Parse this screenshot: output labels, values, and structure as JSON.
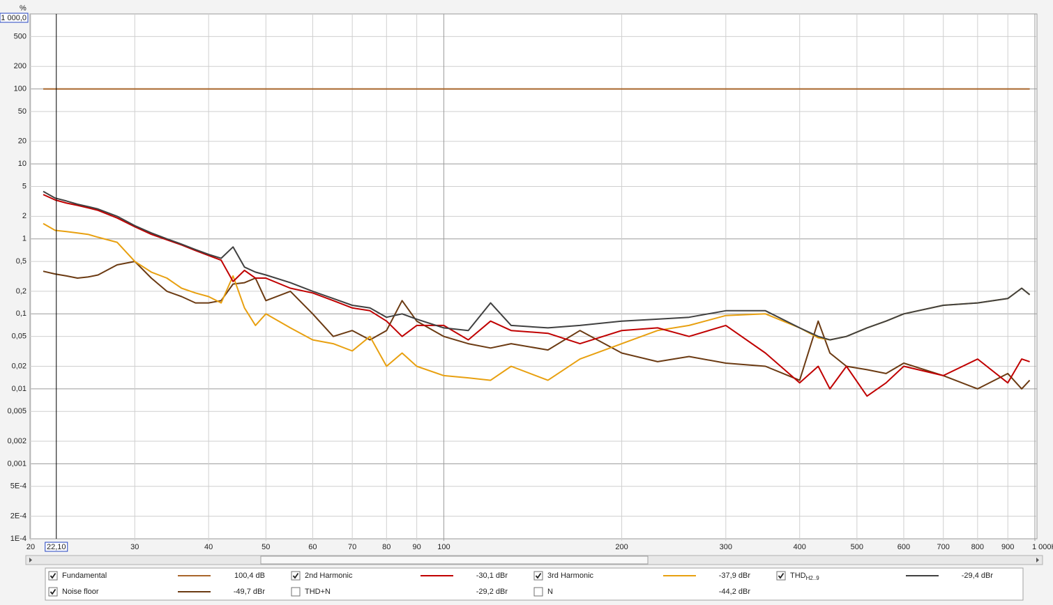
{
  "chart_data": {
    "type": "line",
    "y_label": "%",
    "log_x": true,
    "log_y": true,
    "grid": true,
    "xlim": [
      20,
      1000
    ],
    "ylim": [
      0.0001,
      1000
    ],
    "xticks": [
      20,
      30,
      40,
      50,
      60,
      70,
      80,
      90,
      100,
      200,
      300,
      400,
      500,
      600,
      700,
      800,
      900,
      {
        "value": 1000,
        "label": "1 000Hz"
      }
    ],
    "yticks": [
      {
        "value": 1000,
        "label": "1 000,0"
      },
      500,
      200,
      100,
      50,
      20,
      10,
      5,
      2,
      1,
      {
        "value": 0.5,
        "label": "0,5"
      },
      {
        "value": 0.2,
        "label": "0,2"
      },
      {
        "value": 0.1,
        "label": "0,1"
      },
      {
        "value": 0.05,
        "label": "0,05"
      },
      {
        "value": 0.02,
        "label": "0,02"
      },
      {
        "value": 0.01,
        "label": "0,01"
      },
      {
        "value": 0.005,
        "label": "0,005"
      },
      {
        "value": 0.002,
        "label": "0,002"
      },
      {
        "value": 0.001,
        "label": "0,001"
      },
      {
        "value": 0.0005,
        "label": "5E-4"
      },
      {
        "value": 0.0002,
        "label": "2E-4"
      },
      {
        "value": 0.0001,
        "label": "1E-4"
      }
    ],
    "cursor": {
      "value": 22.1,
      "label": "22,10"
    },
    "x": [
      21,
      22,
      23,
      24,
      25,
      26,
      28,
      30,
      32,
      34,
      36,
      38,
      40,
      42,
      44,
      46,
      48,
      50,
      55,
      60,
      65,
      70,
      75,
      80,
      85,
      90,
      100,
      110,
      120,
      130,
      150,
      170,
      200,
      230,
      260,
      300,
      350,
      400,
      430,
      450,
      480,
      520,
      560,
      600,
      700,
      800,
      900,
      950,
      980
    ],
    "series": [
      {
        "name": "Fundamental",
        "color": "#a8652a",
        "reading": "100,4 dB",
        "checked": true,
        "x": [
          21,
          980
        ],
        "values": [
          100,
          100
        ]
      },
      {
        "name": "2nd Harmonic",
        "color": "#c00000",
        "reading": "-30,1 dBr",
        "checked": true,
        "values": [
          3.9,
          3.3,
          3.0,
          2.8,
          2.6,
          2.4,
          1.9,
          1.45,
          1.15,
          0.97,
          0.83,
          0.7,
          0.6,
          0.52,
          0.27,
          0.38,
          0.3,
          0.3,
          0.22,
          0.19,
          0.15,
          0.12,
          0.11,
          0.08,
          0.05,
          0.07,
          0.07,
          0.045,
          0.08,
          0.06,
          0.055,
          0.04,
          0.06,
          0.065,
          0.05,
          0.07,
          0.03,
          0.012,
          0.02,
          0.01,
          0.02,
          0.008,
          0.012,
          0.02,
          0.015,
          0.025,
          0.012,
          0.025,
          0.023
        ]
      },
      {
        "name": "3rd Harmonic",
        "color": "#e8a010",
        "reading": "-37,9 dBr",
        "checked": true,
        "values": [
          1.6,
          1.3,
          1.25,
          1.2,
          1.15,
          1.05,
          0.9,
          0.5,
          0.36,
          0.3,
          0.22,
          0.19,
          0.17,
          0.14,
          0.32,
          0.12,
          0.07,
          0.1,
          0.065,
          0.045,
          0.04,
          0.032,
          0.05,
          0.02,
          0.03,
          0.02,
          0.015,
          0.014,
          0.013,
          0.02,
          0.013,
          0.025,
          0.04,
          0.06,
          0.07,
          0.095,
          0.1,
          0.065,
          0.048,
          0.045,
          0.05,
          0.065,
          0.08,
          0.1,
          0.13,
          0.14,
          0.16,
          0.22,
          0.18
        ]
      },
      {
        "name": "THD",
        "sub": "H2..9",
        "color": "#404040",
        "reading": "-29,4 dBr",
        "checked": true,
        "values": [
          4.3,
          3.5,
          3.2,
          2.9,
          2.7,
          2.5,
          2.0,
          1.5,
          1.2,
          1.0,
          0.85,
          0.72,
          0.62,
          0.55,
          0.78,
          0.42,
          0.36,
          0.33,
          0.26,
          0.2,
          0.16,
          0.13,
          0.12,
          0.09,
          0.1,
          0.085,
          0.065,
          0.06,
          0.14,
          0.07,
          0.065,
          0.07,
          0.08,
          0.085,
          0.09,
          0.11,
          0.11,
          0.065,
          0.05,
          0.045,
          0.05,
          0.065,
          0.08,
          0.1,
          0.13,
          0.14,
          0.16,
          0.22,
          0.18
        ]
      },
      {
        "name": "Noise floor",
        "color": "#6b3a12",
        "reading": "-49,7 dBr",
        "checked": true,
        "values": [
          0.37,
          0.34,
          0.32,
          0.3,
          0.31,
          0.33,
          0.45,
          0.5,
          0.3,
          0.2,
          0.17,
          0.14,
          0.14,
          0.15,
          0.25,
          0.26,
          0.3,
          0.15,
          0.2,
          0.1,
          0.05,
          0.06,
          0.045,
          0.06,
          0.15,
          0.08,
          0.05,
          0.04,
          0.035,
          0.04,
          0.033,
          0.06,
          0.03,
          0.023,
          0.027,
          0.022,
          0.02,
          0.013,
          0.08,
          0.03,
          0.02,
          0.018,
          0.016,
          0.022,
          0.015,
          0.01,
          0.016,
          0.01,
          0.013
        ]
      },
      {
        "name": "THD+N",
        "color": "#808080",
        "reading": "-29,2 dBr",
        "checked": false
      },
      {
        "name": "N",
        "color": "#2e5a1c",
        "reading": "-44,2 dBr",
        "checked": false
      }
    ]
  }
}
